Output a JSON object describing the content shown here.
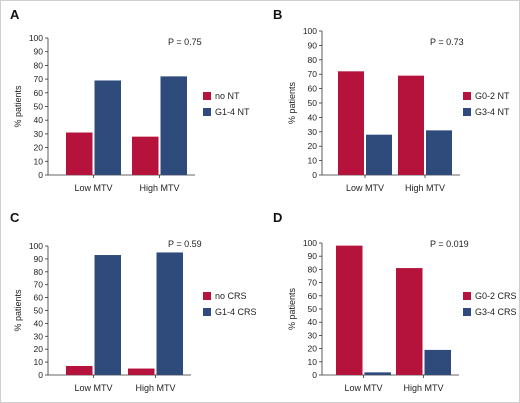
{
  "colors": {
    "red": "#b5133b",
    "blue": "#2f4b7c"
  },
  "chart_data": [
    {
      "panel": "A",
      "type": "bar",
      "categories": [
        "Low MTV",
        "High MTV"
      ],
      "ylabel": "% patients",
      "ylim": [
        0,
        100
      ],
      "yticks": [
        0,
        10,
        20,
        30,
        40,
        50,
        60,
        70,
        80,
        90,
        100
      ],
      "pvalue": "P = 0.75",
      "series": [
        {
          "name": "no NT",
          "color": "red",
          "values": [
            31,
            28
          ]
        },
        {
          "name": "G1-4 NT",
          "color": "blue",
          "values": [
            69,
            72
          ]
        }
      ]
    },
    {
      "panel": "B",
      "type": "bar",
      "categories": [
        "Low MTV",
        "High MTV"
      ],
      "ylabel": "% patients",
      "ylim": [
        0,
        100
      ],
      "yticks": [
        0,
        10,
        20,
        30,
        40,
        50,
        60,
        70,
        80,
        90,
        100
      ],
      "pvalue": "P = 0.73",
      "series": [
        {
          "name": "G0-2 NT",
          "color": "red",
          "values": [
            72,
            69
          ]
        },
        {
          "name": "G3-4 NT",
          "color": "blue",
          "values": [
            28,
            31
          ]
        }
      ]
    },
    {
      "panel": "C",
      "type": "bar",
      "categories": [
        "Low MTV",
        "High MTV"
      ],
      "ylabel": "% patients",
      "ylim": [
        0,
        100
      ],
      "yticks": [
        0,
        10,
        20,
        30,
        40,
        50,
        60,
        70,
        80,
        90,
        100
      ],
      "pvalue": "P = 0.59",
      "series": [
        {
          "name": "no CRS",
          "color": "red",
          "values": [
            7,
            5
          ]
        },
        {
          "name": "G1-4 CRS",
          "color": "blue",
          "values": [
            93,
            95
          ]
        }
      ]
    },
    {
      "panel": "D",
      "type": "bar",
      "categories": [
        "Low MTV",
        "High MTV"
      ],
      "ylabel": "% patients",
      "ylim": [
        0,
        100
      ],
      "yticks": [
        0,
        10,
        20,
        30,
        40,
        50,
        60,
        70,
        80,
        90,
        100
      ],
      "pvalue": "P = 0.019",
      "series": [
        {
          "name": "G0-2 CRS",
          "color": "red",
          "values": [
            98,
            81
          ]
        },
        {
          "name": "G3-4 CRS",
          "color": "blue",
          "values": [
            2,
            19
          ]
        }
      ]
    }
  ]
}
